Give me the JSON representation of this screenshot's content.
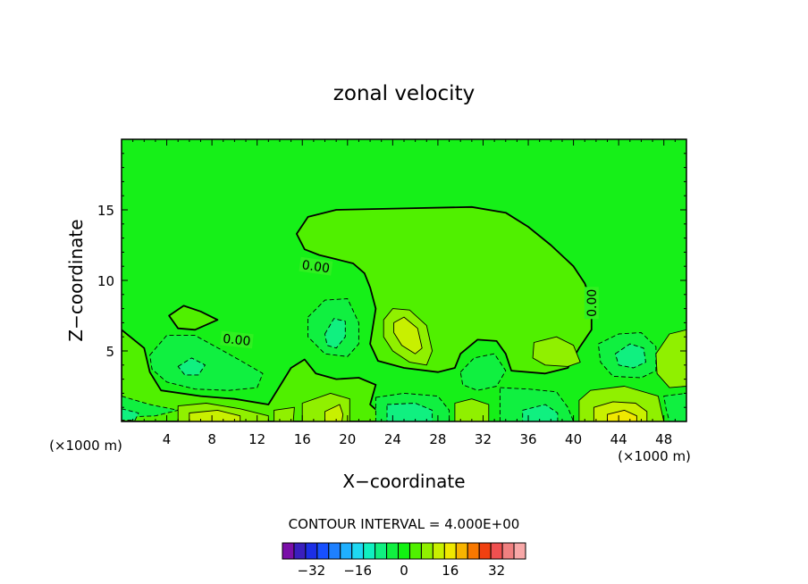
{
  "chart_data": {
    "type": "contour",
    "title": "zonal velocity",
    "xlabel": "X−coordinate",
    "ylabel": "Z−coordinate",
    "x_unit_left": "(×1000 m)",
    "x_unit_right": "(×1000 m)",
    "xlim": [
      0,
      50
    ],
    "ylim": [
      0,
      20
    ],
    "x_ticks": [
      4,
      8,
      12,
      16,
      20,
      24,
      28,
      32,
      36,
      40,
      44,
      48
    ],
    "y_ticks": [
      5,
      10,
      15
    ],
    "contour_interval_text": "CONTOUR INTERVAL = 4.000E+00",
    "contour_labels": [
      {
        "text": "0.00",
        "x": 17.2,
        "y": 11.0,
        "angle": 8
      },
      {
        "text": "0.00",
        "x": 10.2,
        "y": 5.8,
        "angle": 6
      },
      {
        "text": "0.00",
        "x": 41.6,
        "y": 8.4,
        "angle": -90
      }
    ],
    "colorbar": {
      "ticks": [
        -32,
        -16,
        0,
        16,
        32
      ],
      "tick_labels": [
        "−32",
        "−16",
        "0",
        "16",
        "32"
      ],
      "colors": [
        "#7a0fa8",
        "#3a1fbe",
        "#1c2fe6",
        "#1750ff",
        "#1e80ff",
        "#1fb0ff",
        "#1fd8f2",
        "#10f0c0",
        "#10f080",
        "#10f040",
        "#12f212",
        "#50f000",
        "#90f000",
        "#c8f000",
        "#f0e800",
        "#f8b400",
        "#f87800",
        "#f04010",
        "#f05050",
        "#f08080",
        "#f8a8a8"
      ]
    },
    "regions": [
      {
        "level": 0,
        "kind": "closed",
        "points": [
          [
            15.5,
            13.3
          ],
          [
            16.5,
            14.5
          ],
          [
            19,
            15
          ],
          [
            25,
            15.1
          ],
          [
            31,
            15.2
          ],
          [
            34,
            14.8
          ],
          [
            36,
            13.8
          ],
          [
            38,
            12.5
          ],
          [
            40,
            11
          ],
          [
            41,
            9.8
          ],
          [
            41.6,
            8.5
          ],
          [
            41.6,
            6.5
          ],
          [
            40.5,
            5.2
          ],
          [
            39.5,
            3.8
          ],
          [
            37.5,
            3.4
          ],
          [
            34.5,
            3.6
          ],
          [
            34,
            4.8
          ],
          [
            33.2,
            5.7
          ],
          [
            31.5,
            5.8
          ],
          [
            30,
            4.8
          ],
          [
            29.5,
            3.8
          ],
          [
            28,
            3.5
          ],
          [
            25,
            3.8
          ],
          [
            22.7,
            4.3
          ],
          [
            22,
            5.5
          ],
          [
            22.5,
            8
          ],
          [
            22,
            9.5
          ],
          [
            21.5,
            10.5
          ],
          [
            20.5,
            11.2
          ],
          [
            19,
            11.5
          ],
          [
            17.5,
            11.8
          ],
          [
            16.2,
            12.2
          ]
        ]
      },
      {
        "level": 4,
        "kind": "closed",
        "points": [
          [
            23.2,
            7.2
          ],
          [
            24,
            8
          ],
          [
            25.5,
            7.9
          ],
          [
            27,
            6.8
          ],
          [
            27.5,
            5
          ],
          [
            27,
            4
          ],
          [
            25.5,
            4.2
          ],
          [
            24,
            5
          ],
          [
            23.2,
            6
          ]
        ]
      },
      {
        "level": 8,
        "kind": "closed",
        "points": [
          [
            24.1,
            7
          ],
          [
            25,
            7.4
          ],
          [
            26.2,
            6.6
          ],
          [
            26.6,
            5.2
          ],
          [
            26,
            4.8
          ],
          [
            24.8,
            5.4
          ],
          [
            24.1,
            6.3
          ]
        ]
      },
      {
        "level": -4,
        "kind": "closed",
        "points": [
          [
            16.5,
            7.4
          ],
          [
            18,
            8.6
          ],
          [
            20,
            8.7
          ],
          [
            21,
            7
          ],
          [
            21,
            5.5
          ],
          [
            20,
            4.6
          ],
          [
            18,
            4.8
          ],
          [
            16.5,
            6
          ]
        ]
      },
      {
        "level": -8,
        "kind": "closed",
        "points": [
          [
            18,
            6.2
          ],
          [
            18.8,
            7.3
          ],
          [
            19.8,
            7.1
          ],
          [
            19.8,
            6
          ],
          [
            19,
            5.2
          ],
          [
            18.2,
            5.4
          ]
        ]
      },
      {
        "level": 0,
        "kind": "closed",
        "points": [
          [
            4.2,
            7.5
          ],
          [
            5.5,
            8.2
          ],
          [
            7,
            7.8
          ],
          [
            8.5,
            7.2
          ],
          [
            6.5,
            6.5
          ],
          [
            5,
            6.6
          ]
        ]
      },
      {
        "level": -4,
        "kind": "closed",
        "points": [
          [
            2.5,
            4.7
          ],
          [
            4,
            6.1
          ],
          [
            6.5,
            6.1
          ],
          [
            9,
            5
          ],
          [
            11,
            4.1
          ],
          [
            12.5,
            3.4
          ],
          [
            12,
            2.4
          ],
          [
            9.5,
            2.2
          ],
          [
            6.5,
            2.3
          ],
          [
            4,
            2.8
          ],
          [
            2.7,
            3.7
          ]
        ]
      },
      {
        "level": -8,
        "kind": "closed",
        "points": [
          [
            5,
            3.9
          ],
          [
            6.2,
            4.5
          ],
          [
            7.4,
            4
          ],
          [
            6.8,
            3.3
          ],
          [
            5.6,
            3.3
          ]
        ]
      },
      {
        "level": 4,
        "kind": "closed",
        "points": [
          [
            36.5,
            5.6
          ],
          [
            38.5,
            6
          ],
          [
            40,
            5.4
          ],
          [
            40.6,
            4.2
          ],
          [
            39.5,
            3.9
          ],
          [
            37.5,
            4
          ],
          [
            36.4,
            4.5
          ]
        ]
      },
      {
        "level": -4,
        "kind": "closed",
        "points": [
          [
            42.2,
            5.5
          ],
          [
            44,
            6.2
          ],
          [
            46,
            6.3
          ],
          [
            47.3,
            5.3
          ],
          [
            47.3,
            3.6
          ],
          [
            46,
            3.1
          ],
          [
            43.5,
            3.2
          ],
          [
            42.4,
            4.2
          ]
        ]
      },
      {
        "level": -8,
        "kind": "closed",
        "points": [
          [
            43.7,
            4.8
          ],
          [
            45,
            5.5
          ],
          [
            46.2,
            5.2
          ],
          [
            46.4,
            4.2
          ],
          [
            45.3,
            3.8
          ],
          [
            44,
            4
          ]
        ]
      },
      {
        "level": 4,
        "kind": "closed",
        "points": [
          [
            47.3,
            4.8
          ],
          [
            48.5,
            6.2
          ],
          [
            50,
            6.5
          ],
          [
            50,
            2.5
          ],
          [
            48.5,
            2.4
          ],
          [
            47.4,
            3.4
          ]
        ]
      },
      {
        "level": -4,
        "kind": "closed",
        "points": [
          [
            30,
            3.5
          ],
          [
            31.2,
            4.5
          ],
          [
            33,
            4.8
          ],
          [
            34,
            3.6
          ],
          [
            33.2,
            2.5
          ],
          [
            31.5,
            2.2
          ],
          [
            30.2,
            2.6
          ]
        ]
      },
      {
        "level": 0,
        "kind": "closed",
        "points": [
          [
            0,
            6.5
          ],
          [
            2,
            5.2
          ],
          [
            2.5,
            3.5
          ],
          [
            3.5,
            2.2
          ],
          [
            7,
            1.8
          ],
          [
            10,
            1.6
          ],
          [
            13,
            1.2
          ],
          [
            14,
            2.5
          ],
          [
            15,
            3.8
          ],
          [
            16.2,
            4.4
          ],
          [
            17.2,
            3.4
          ],
          [
            19,
            3
          ],
          [
            21,
            3.1
          ],
          [
            22.5,
            2.6
          ],
          [
            22,
            1.2
          ],
          [
            23,
            0.5
          ],
          [
            23,
            0
          ],
          [
            0,
            0
          ]
        ]
      },
      {
        "level": -4,
        "kind": "closed",
        "points": [
          [
            0,
            1.8
          ],
          [
            2.5,
            1.2
          ],
          [
            5,
            0.8
          ],
          [
            3,
            0.4
          ],
          [
            0,
            0.3
          ]
        ]
      },
      {
        "level": -8,
        "kind": "closed",
        "points": [
          [
            0,
            0.9
          ],
          [
            1.5,
            0.6
          ],
          [
            1.2,
            0.1
          ],
          [
            0,
            0.1
          ]
        ]
      },
      {
        "level": 4,
        "kind": "closed",
        "points": [
          [
            5,
            1.1
          ],
          [
            7.5,
            1.3
          ],
          [
            10.5,
            0.9
          ],
          [
            13,
            0.4
          ],
          [
            13,
            0
          ],
          [
            5,
            0
          ]
        ]
      },
      {
        "level": 8,
        "kind": "closed",
        "points": [
          [
            6,
            0.6
          ],
          [
            8.5,
            0.8
          ],
          [
            10.5,
            0.4
          ],
          [
            10.5,
            0
          ],
          [
            6,
            0
          ]
        ]
      },
      {
        "level": 4,
        "kind": "closed",
        "points": [
          [
            16,
            1.3
          ],
          [
            18.5,
            2
          ],
          [
            20.2,
            1.6
          ],
          [
            20.2,
            0
          ],
          [
            16,
            0
          ]
        ]
      },
      {
        "level": 8,
        "kind": "closed",
        "points": [
          [
            18,
            0.7
          ],
          [
            19.3,
            1.2
          ],
          [
            19.6,
            0.5
          ],
          [
            19.5,
            0
          ],
          [
            18,
            0
          ]
        ]
      },
      {
        "level": 4,
        "kind": "closed",
        "points": [
          [
            13.5,
            0.8
          ],
          [
            15.3,
            1
          ],
          [
            15.2,
            0
          ],
          [
            13.5,
            0
          ]
        ]
      },
      {
        "level": -4,
        "kind": "closed",
        "points": [
          [
            22.5,
            1.7
          ],
          [
            25,
            2
          ],
          [
            28,
            1.8
          ],
          [
            29,
            0.8
          ],
          [
            29,
            0
          ],
          [
            22.5,
            0
          ]
        ]
      },
      {
        "level": -8,
        "kind": "closed",
        "points": [
          [
            23.5,
            1.2
          ],
          [
            26,
            1.3
          ],
          [
            27.5,
            0.8
          ],
          [
            27.5,
            0
          ],
          [
            23.5,
            0
          ]
        ]
      },
      {
        "level": -4,
        "kind": "closed",
        "points": [
          [
            33.5,
            2.4
          ],
          [
            36,
            2.3
          ],
          [
            38.5,
            2.1
          ],
          [
            39.5,
            1
          ],
          [
            40,
            0
          ],
          [
            33.5,
            0
          ]
        ]
      },
      {
        "level": -8,
        "kind": "closed",
        "points": [
          [
            35.5,
            0.8
          ],
          [
            37.5,
            1.2
          ],
          [
            38.6,
            0.6
          ],
          [
            38.6,
            0
          ],
          [
            35.5,
            0
          ]
        ]
      },
      {
        "level": 4,
        "kind": "closed",
        "points": [
          [
            40.5,
            1.5
          ],
          [
            41.5,
            2.2
          ],
          [
            44.5,
            2.5
          ],
          [
            47.5,
            1.8
          ],
          [
            48,
            0
          ],
          [
            40.5,
            0
          ]
        ]
      },
      {
        "level": 8,
        "kind": "closed",
        "points": [
          [
            41.8,
            1
          ],
          [
            43.5,
            1.4
          ],
          [
            45.5,
            1.3
          ],
          [
            46.5,
            0.7
          ],
          [
            46.5,
            0
          ],
          [
            41.8,
            0
          ]
        ]
      },
      {
        "level": 12,
        "kind": "closed",
        "points": [
          [
            43,
            0.5
          ],
          [
            44.5,
            0.8
          ],
          [
            45.6,
            0.4
          ],
          [
            45.6,
            0
          ],
          [
            43,
            0
          ]
        ]
      },
      {
        "level": 4,
        "kind": "closed",
        "points": [
          [
            29.5,
            1.3
          ],
          [
            31,
            1.6
          ],
          [
            32.5,
            1.2
          ],
          [
            32.5,
            0
          ],
          [
            29.5,
            0
          ]
        ]
      },
      {
        "level": -4,
        "kind": "closed",
        "points": [
          [
            48,
            1.8
          ],
          [
            50,
            2
          ],
          [
            50,
            0
          ],
          [
            48.5,
            0
          ],
          [
            48.2,
            0.9
          ]
        ]
      }
    ]
  }
}
